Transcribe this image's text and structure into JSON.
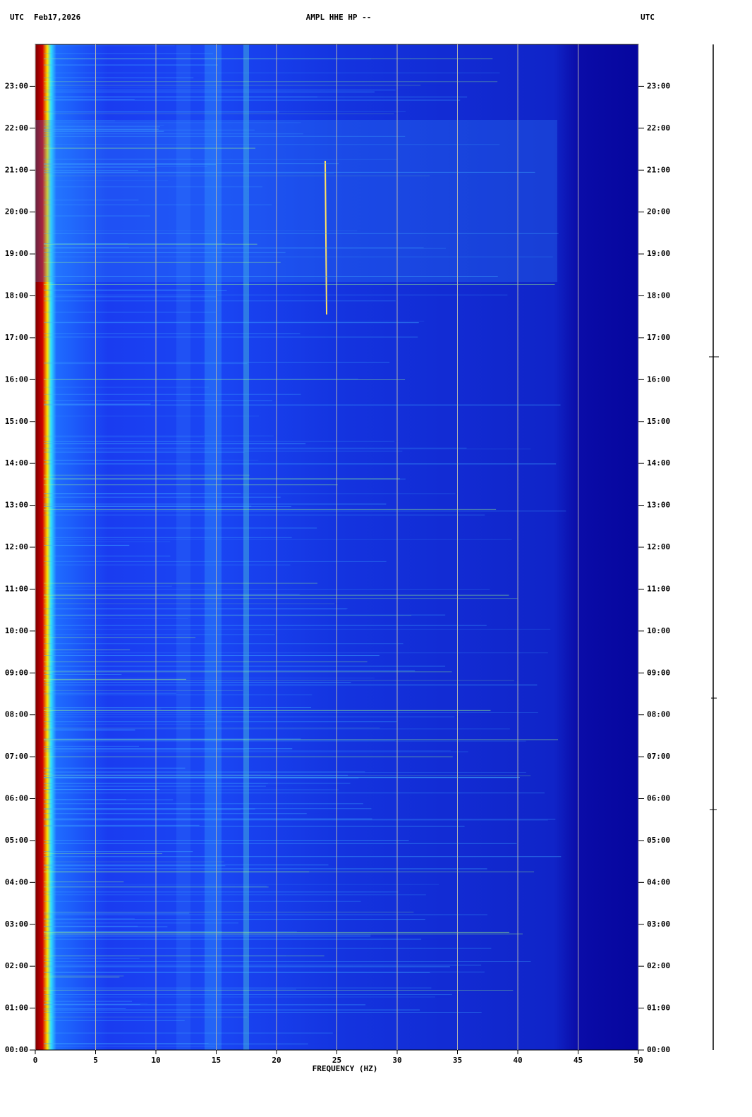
{
  "chart_data": {
    "type": "spectrogram",
    "title": "AMPL HHE HP --",
    "date_label": "Feb17,2026",
    "timezone_label": "UTC",
    "xlabel": "FREQUENCY (HZ)",
    "xlim": [
      0,
      50
    ],
    "xticks": [
      0,
      5,
      10,
      15,
      20,
      25,
      30,
      35,
      40,
      45,
      50
    ],
    "ylim": [
      0,
      24
    ],
    "yticks": [
      {
        "value": 0,
        "label": "00:00"
      },
      {
        "value": 1,
        "label": "01:00"
      },
      {
        "value": 2,
        "label": "02:00"
      },
      {
        "value": 3,
        "label": "03:00"
      },
      {
        "value": 4,
        "label": "04:00"
      },
      {
        "value": 5,
        "label": "05:00"
      },
      {
        "value": 6,
        "label": "06:00"
      },
      {
        "value": 7,
        "label": "07:00"
      },
      {
        "value": 8,
        "label": "08:00"
      },
      {
        "value": 9,
        "label": "09:00"
      },
      {
        "value": 10,
        "label": "10:00"
      },
      {
        "value": 11,
        "label": "11:00"
      },
      {
        "value": 12,
        "label": "12:00"
      },
      {
        "value": 13,
        "label": "13:00"
      },
      {
        "value": 14,
        "label": "14:00"
      },
      {
        "value": 15,
        "label": "15:00"
      },
      {
        "value": 16,
        "label": "16:00"
      },
      {
        "value": 17,
        "label": "17:00"
      },
      {
        "value": 18,
        "label": "18:00"
      },
      {
        "value": 19,
        "label": "19:00"
      },
      {
        "value": 20,
        "label": "20:00"
      },
      {
        "value": 21,
        "label": "21:00"
      },
      {
        "value": 22,
        "label": "22:00"
      },
      {
        "value": 23,
        "label": "23:00"
      }
    ],
    "grid": true
  }
}
